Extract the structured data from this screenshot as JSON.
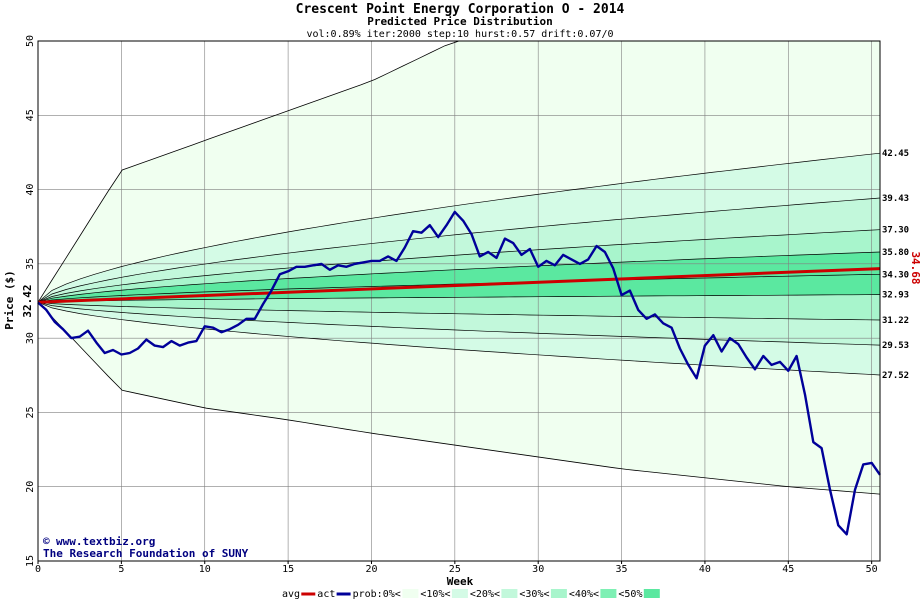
{
  "chart_data": {
    "type": "area",
    "title": "Crescent Point Energy Corporation O - 2014",
    "subtitle": "Predicted Price Distribution",
    "params": "vol:0.89% iter:2000 step:10 hurst:0.57 drift:0.07/0",
    "xlabel": "Week",
    "ylabel": "Price ($)",
    "xlim": [
      0,
      50.5
    ],
    "ylim": [
      15,
      50
    ],
    "x_ticks": [
      "0",
      "5",
      "10",
      "15",
      "20",
      "25",
      "30",
      "35",
      "40",
      "45",
      "50"
    ],
    "y_ticks": [
      "15",
      "20",
      "25",
      "30",
      "35",
      "40",
      "45",
      "50"
    ],
    "start_price": "32.42",
    "end_avg_price": "34.68",
    "right_labels": [
      "42.45",
      "39.43",
      "37.30",
      "35.80",
      "34.30",
      "32.93",
      "31.22",
      "29.53",
      "27.52"
    ],
    "credit_line1": "www.textbiz.org",
    "credit_line2": "The Research Foundation of SUNY",
    "copyright_symbol": "©",
    "grid": true,
    "colors": {
      "band_outer": "#f0fff0",
      "band_10": "#d4fbe6",
      "band_20": "#c2f8db",
      "band_30": "#a8f5cc",
      "band_40": "#7ef0b4",
      "band_50": "#5be8a0",
      "avg_line": "#cc0000",
      "act_line": "#000099",
      "grid": "#808080"
    },
    "envelope": {
      "x": [
        0,
        5,
        10,
        15,
        20,
        25,
        30,
        35,
        40,
        45,
        50.5
      ],
      "upper": [
        32.42,
        41.3,
        43.3,
        45.3,
        47.3,
        50.0,
        50.0,
        50.0,
        50.0,
        50.0,
        50.0
      ],
      "lower": [
        32.42,
        26.5,
        25.3,
        24.5,
        23.6,
        22.8,
        22.0,
        21.2,
        20.6,
        20.0,
        19.5
      ]
    },
    "series": [
      {
        "name": "avg",
        "x": [
          0,
          50.5
        ],
        "values": [
          32.42,
          34.68
        ]
      },
      {
        "name": "act",
        "x": [
          0,
          0.5,
          1,
          1.5,
          2,
          2.5,
          3,
          3.5,
          4,
          4.5,
          5,
          5.5,
          6,
          6.5,
          7,
          7.5,
          8,
          8.5,
          9,
          9.5,
          10,
          10.5,
          11,
          11.5,
          12,
          12.5,
          13,
          13.5,
          14,
          14.5,
          15,
          15.5,
          16,
          16.5,
          17,
          17.5,
          18,
          18.5,
          19,
          19.5,
          20,
          20.5,
          21,
          21.5,
          22,
          22.5,
          23,
          23.5,
          24,
          24.5,
          25,
          25.5,
          26,
          26.5,
          27,
          27.5,
          28,
          28.5,
          29,
          29.5,
          30,
          30.5,
          31,
          31.5,
          32,
          32.5,
          33,
          33.5,
          34,
          34.5,
          35,
          35.5,
          36,
          36.5,
          37,
          37.5,
          38,
          38.5,
          39,
          39.5,
          40,
          40.5,
          41,
          41.5,
          42,
          42.5,
          43,
          43.5,
          44,
          44.5,
          45,
          45.5,
          46,
          46.5,
          47,
          47.5,
          48,
          48.5,
          49,
          49.5,
          50,
          50.5
        ],
        "values": [
          32.4,
          31.9,
          31.1,
          30.6,
          30.0,
          30.1,
          30.5,
          29.7,
          29.0,
          29.2,
          28.9,
          29.0,
          29.3,
          29.9,
          29.5,
          29.4,
          29.8,
          29.5,
          29.7,
          29.8,
          30.8,
          30.7,
          30.4,
          30.6,
          30.9,
          31.3,
          31.3,
          32.3,
          33.2,
          34.3,
          34.5,
          34.8,
          34.8,
          34.9,
          35.0,
          34.6,
          34.9,
          34.8,
          35.0,
          35.1,
          35.2,
          35.2,
          35.5,
          35.2,
          36.1,
          37.2,
          37.1,
          37.6,
          36.8,
          37.6,
          38.5,
          37.9,
          37.0,
          35.5,
          35.8,
          35.4,
          36.7,
          36.4,
          35.6,
          36.0,
          34.8,
          35.2,
          34.9,
          35.6,
          35.3,
          35.0,
          35.3,
          36.2,
          35.8,
          34.7,
          32.9,
          33.2,
          31.9,
          31.3,
          31.6,
          31.0,
          30.7,
          29.3,
          28.2,
          27.3,
          29.5,
          30.2,
          29.1,
          30.0,
          29.6,
          28.7,
          27.9,
          28.8,
          28.2,
          28.4,
          27.8,
          28.8,
          26.2,
          23.0,
          22.6,
          19.8,
          17.4,
          16.8,
          19.8,
          21.5,
          21.6,
          20.8
        ]
      }
    ],
    "quantile_curves": [
      {
        "end": 42.45
      },
      {
        "end": 39.43
      },
      {
        "end": 37.3
      },
      {
        "end": 35.8
      },
      {
        "end": 34.3
      },
      {
        "end": 32.93
      },
      {
        "end": 31.22
      },
      {
        "end": 29.53
      },
      {
        "end": 27.52
      }
    ],
    "legend": [
      {
        "label": "avg",
        "kind": "line",
        "color": "#cc0000"
      },
      {
        "label": "act",
        "kind": "line",
        "color": "#000099"
      },
      {
        "label": "prob:0%<",
        "kind": "box",
        "color": "#f0fff0"
      },
      {
        "label": "<10%<",
        "kind": "box",
        "color": "#d4fbe6"
      },
      {
        "label": "<20%<",
        "kind": "box",
        "color": "#c2f8db"
      },
      {
        "label": "<30%<",
        "kind": "box",
        "color": "#a8f5cc"
      },
      {
        "label": "<40%<",
        "kind": "box",
        "color": "#7ef0b4"
      },
      {
        "label": "<50%",
        "kind": "box",
        "color": "#5be8a0"
      }
    ]
  }
}
